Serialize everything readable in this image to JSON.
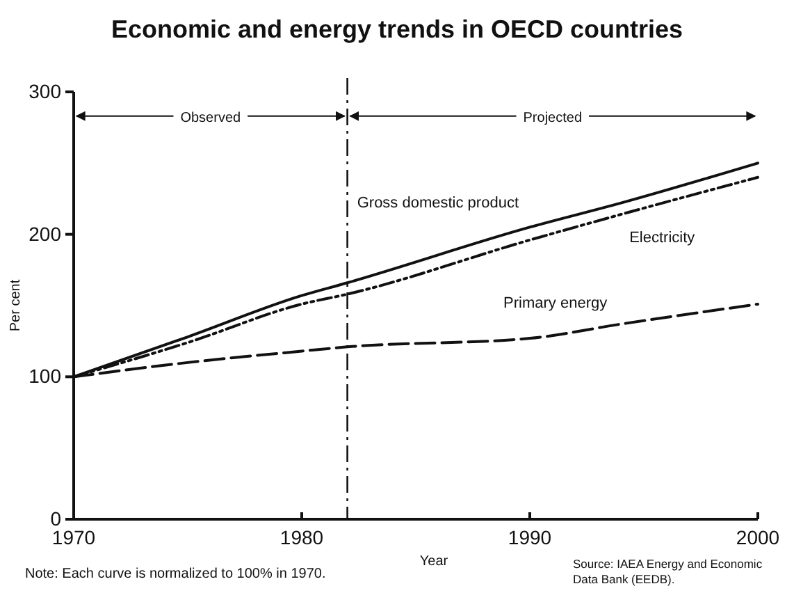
{
  "chart_data": {
    "type": "line",
    "title": "Economic and energy trends in OECD countries",
    "xlabel": "Year",
    "ylabel": "Per cent",
    "xlim": [
      1970,
      2000
    ],
    "xticks": [
      1970,
      1980,
      1990,
      2000
    ],
    "ylim": [
      0,
      300
    ],
    "yticks": [
      0,
      100,
      200,
      300
    ],
    "grid": false,
    "series": [
      {
        "name": "Gross domestic product",
        "color": "#111111",
        "line_style": "solid",
        "x": [
          1970,
          1975,
          1980,
          1982,
          1990,
          1994,
          2000
        ],
        "values": [
          100,
          128,
          157,
          166,
          205,
          222,
          250
        ]
      },
      {
        "name": "Electricity",
        "color": "#111111",
        "line_style": "dotted",
        "x": [
          1970,
          1975,
          1980,
          1982,
          1990,
          1994,
          2000
        ],
        "values": [
          100,
          124,
          151,
          158,
          196,
          214,
          240
        ]
      },
      {
        "name": "Primary energy",
        "color": "#111111",
        "line_style": "dashed",
        "x": [
          1970,
          1975,
          1980,
          1982,
          1990,
          1994,
          2000
        ],
        "values": [
          100,
          110,
          118,
          121,
          127,
          137,
          151
        ]
      }
    ],
    "ref_lines": [
      {
        "axis": "x",
        "value": 1982,
        "line_style": "dashdot",
        "color": "#111111"
      }
    ],
    "annotations": [
      {
        "text": "Observed",
        "x": 1982,
        "y": 283
      },
      {
        "text": "Projected",
        "x": 1982,
        "y": 283
      },
      "Note: Each curve is normalized to 100% in 1970.",
      "Source: IAEA Energy and Economic Data Bank (EEDB)."
    ]
  }
}
